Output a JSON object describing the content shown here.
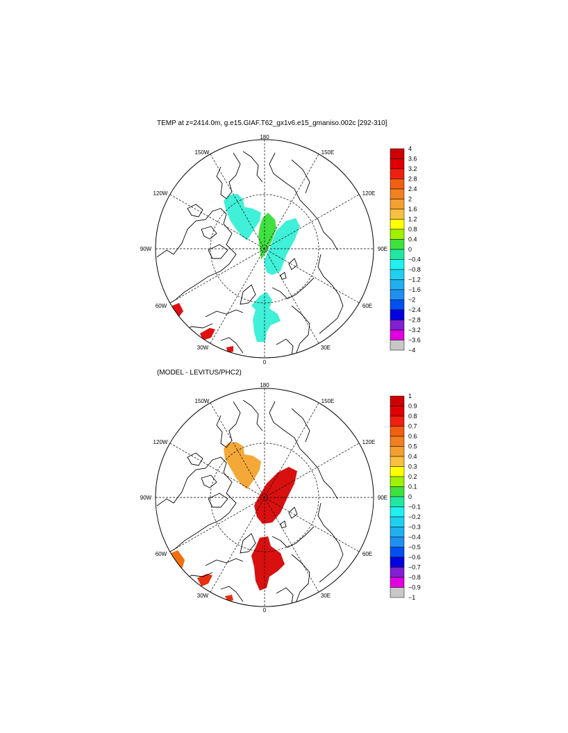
{
  "panels": [
    {
      "id": "top",
      "title": "TEMP at z=2414.0m, g.e15.GIAF.T62_gx1v6.e15_gmaniso.002c [292-310]",
      "longitude_labels": {
        "top": "180",
        "bottom": "0",
        "left": "90W",
        "right": "90E",
        "upper_left": "150W",
        "upper_right": "150E",
        "mid_left": "120W",
        "mid_right": "120E",
        "lower_left": "60W",
        "lower_right": "60E",
        "bottom_left": "30W",
        "bottom_right": "30E"
      },
      "colorbar": {
        "labels": [
          "4",
          "3.6",
          "3.2",
          "2.8",
          "2.4",
          "2",
          "1.6",
          "1.2",
          "0.8",
          "0.4",
          "0",
          "−0.4",
          "−0.8",
          "−1.2",
          "−1.6",
          "−2",
          "−2.4",
          "−2.8",
          "−3.2",
          "−3.6",
          "−4"
        ],
        "colors": [
          "#cc0000",
          "#e00000",
          "#f02010",
          "#f06010",
          "#f08020",
          "#f4a030",
          "#f8c040",
          "#ffff00",
          "#a0f000",
          "#40e040",
          "#20e8a0",
          "#20f0f0",
          "#20d0f0",
          "#20b0f0",
          "#2090f0",
          "#0050f0",
          "#0000e0",
          "#8020d0",
          "#e000e0",
          "#c8c8c8",
          "#707070"
        ]
      },
      "anomaly_regions": [
        {
          "name": "western-arctic-patch",
          "range": "-0.4 to 0",
          "color": "#40f0d8"
        },
        {
          "name": "central-ridge-patch",
          "range": "0 to 0.4",
          "color": "#40e040"
        },
        {
          "name": "eurasian-basin-patch",
          "range": "-0.4 to 0",
          "color": "#40f0d8"
        },
        {
          "name": "nordic-seas-patch",
          "range": "-0.4 to 0",
          "color": "#40f0d8"
        },
        {
          "name": "labrador-patch",
          "range": "3.6 to 4",
          "color": "#e01010"
        },
        {
          "name": "atlantic-patch",
          "range": "3.6 to 4",
          "color": "#e01010"
        }
      ]
    },
    {
      "id": "bottom",
      "title": "(MODEL - LEVITUS/PHC2)",
      "longitude_labels": {
        "top": "180",
        "bottom": "0",
        "left": "90W",
        "right": "90E",
        "upper_left": "150W",
        "upper_right": "150E",
        "mid_left": "120W",
        "mid_right": "120E",
        "lower_left": "60W",
        "lower_right": "60E",
        "bottom_left": "30W",
        "bottom_right": "30E"
      },
      "colorbar": {
        "labels": [
          "1",
          "0.9",
          "0.8",
          "0.7",
          "0.6",
          "0.5",
          "0.4",
          "0.3",
          "0.2",
          "0.1",
          "0",
          "−0.1",
          "−0.2",
          "−0.3",
          "−0.4",
          "−0.5",
          "−0.6",
          "−0.7",
          "−0.8",
          "−0.9",
          "−1"
        ],
        "colors": [
          "#cc0000",
          "#e00000",
          "#f02010",
          "#f06010",
          "#f08020",
          "#f4a030",
          "#f8c040",
          "#ffff00",
          "#a0f000",
          "#40e040",
          "#20e8a0",
          "#20f0f0",
          "#20d0f0",
          "#20b0f0",
          "#2090f0",
          "#0050f0",
          "#0000e0",
          "#8020d0",
          "#e000e0",
          "#c8c8c8",
          "#707070"
        ]
      },
      "anomaly_regions": [
        {
          "name": "western-arctic-patch",
          "range": "0.4 to 0.5",
          "color": "#f4a838"
        },
        {
          "name": "eurasian-basin-patch",
          "range": "0.9 to 1",
          "color": "#d81010"
        },
        {
          "name": "nordic-seas-patch",
          "range": "0.9 to 1",
          "color": "#d81010"
        },
        {
          "name": "labrador-patch",
          "range": "0.6 to 0.9",
          "color": "#f07010"
        },
        {
          "name": "atlantic-patch",
          "range": "0.7 to 1",
          "color": "#e83010"
        }
      ]
    }
  ]
}
